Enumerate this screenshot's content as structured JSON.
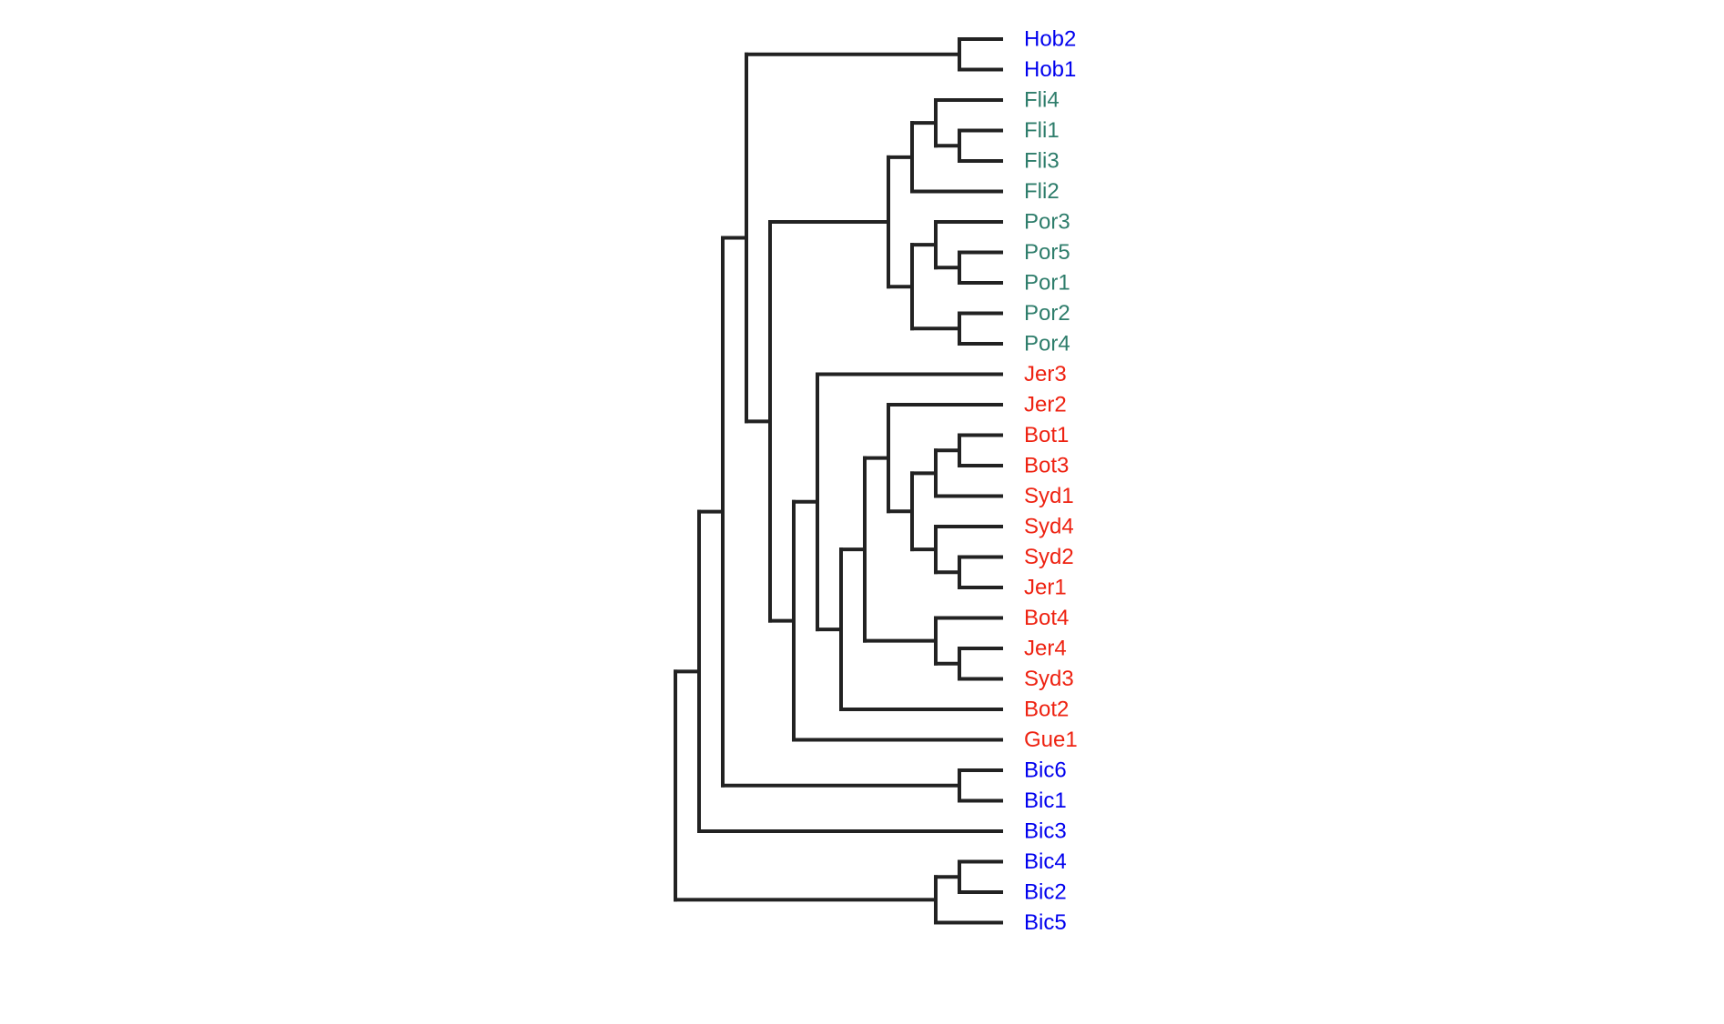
{
  "dendrogram": {
    "group_colors": {
      "blue": "#0000ee",
      "teal": "#2e7d6b",
      "red": "#ee2211"
    },
    "leaves": [
      {
        "label": "Hob2",
        "group": "blue"
      },
      {
        "label": "Hob1",
        "group": "blue"
      },
      {
        "label": "Fli4",
        "group": "teal"
      },
      {
        "label": "Fli1",
        "group": "teal"
      },
      {
        "label": "Fli3",
        "group": "teal"
      },
      {
        "label": "Fli2",
        "group": "teal"
      },
      {
        "label": "Por3",
        "group": "teal"
      },
      {
        "label": "Por5",
        "group": "teal"
      },
      {
        "label": "Por1",
        "group": "teal"
      },
      {
        "label": "Por2",
        "group": "teal"
      },
      {
        "label": "Por4",
        "group": "teal"
      },
      {
        "label": "Jer3",
        "group": "red"
      },
      {
        "label": "Jer2",
        "group": "red"
      },
      {
        "label": "Bot1",
        "group": "red"
      },
      {
        "label": "Bot3",
        "group": "red"
      },
      {
        "label": "Syd1",
        "group": "red"
      },
      {
        "label": "Syd4",
        "group": "red"
      },
      {
        "label": "Syd2",
        "group": "red"
      },
      {
        "label": "Jer1",
        "group": "red"
      },
      {
        "label": "Bot4",
        "group": "red"
      },
      {
        "label": "Jer4",
        "group": "red"
      },
      {
        "label": "Syd3",
        "group": "red"
      },
      {
        "label": "Bot2",
        "group": "red"
      },
      {
        "label": "Gue1",
        "group": "red"
      },
      {
        "label": "Bic6",
        "group": "blue"
      },
      {
        "label": "Bic1",
        "group": "blue"
      },
      {
        "label": "Bic3",
        "group": "blue"
      },
      {
        "label": "Bic4",
        "group": "blue"
      },
      {
        "label": "Bic2",
        "group": "blue"
      },
      {
        "label": "Bic5",
        "group": "blue"
      }
    ],
    "tree": [
      [
        [
          [
            "Hob2",
            "Hob1"
          ],
          [
            [
              [
                [
                  "Fli4",
                  [
                    "Fli1",
                    "Fli3"
                  ]
                ],
                "Fli2"
              ],
              [
                [
                  "Por3",
                  [
                    "Por5",
                    "Por1"
                  ]
                ],
                [
                  "Por2",
                  "Por4"
                ]
              ]
            ],
            [
              [
                "Jer3",
                [
                  [
                    [
                      "Jer2",
                      [
                        [
                          [
                            "Bot1",
                            "Bot3"
                          ],
                          "Syd1"
                        ],
                        [
                          "Syd4",
                          [
                            "Syd2",
                            "Jer1"
                          ]
                        ]
                      ]
                    ],
                    [
                      "Bot4",
                      [
                        "Jer4",
                        "Syd3"
                      ]
                    ]
                  ],
                  "Bot2"
                ]
              ],
              "Gue1"
            ]
          ]
        ],
        [
          "Bic6",
          "Bic1"
        ]
      ],
      "Bic3"
    ],
    "outgroup": [
      [
        "Bic4",
        "Bic2"
      ],
      "Bic5"
    ]
  }
}
